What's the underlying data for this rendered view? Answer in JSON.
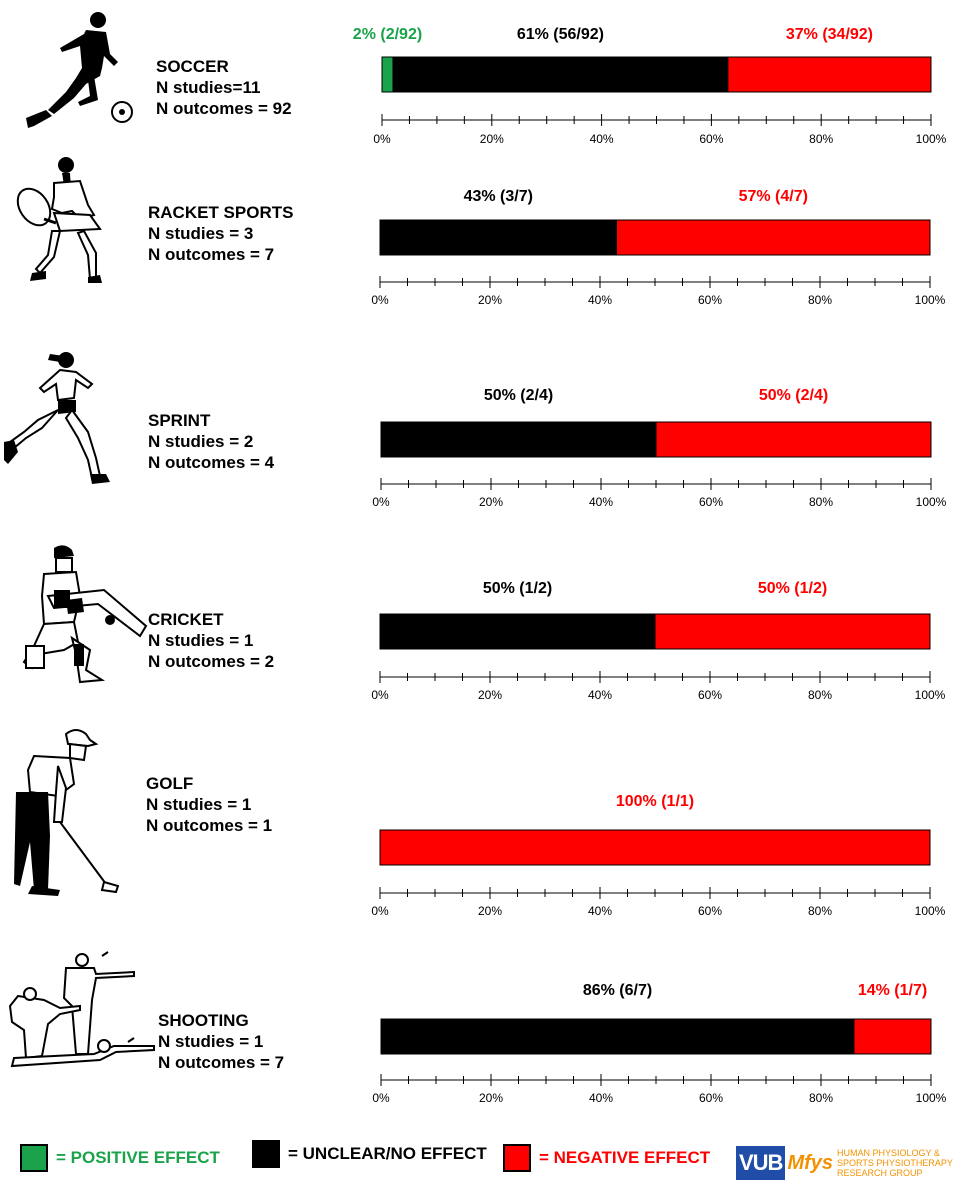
{
  "colors": {
    "positive": "#1aa34a",
    "unclear": "#000000",
    "negative": "#ff0000"
  },
  "sports": [
    {
      "name": "SOCCER",
      "studies": "N studies=11",
      "outcomes": "N outcomes = 92",
      "icon": "soccer-player-icon"
    },
    {
      "name": "RACKET SPORTS",
      "studies": "N studies = 3",
      "outcomes": "N outcomes = 7",
      "icon": "tennis-player-icon"
    },
    {
      "name": "SPRINT",
      "studies": "N studies = 2",
      "outcomes": "N outcomes = 4",
      "icon": "sprinter-icon"
    },
    {
      "name": "CRICKET",
      "studies": "N studies = 1",
      "outcomes": "N outcomes = 2",
      "icon": "cricket-batter-icon"
    },
    {
      "name": "GOLF",
      "studies": "N studies = 1",
      "outcomes": "N outcomes = 1",
      "icon": "golfer-icon"
    },
    {
      "name": "SHOOTING",
      "studies": "N studies = 1",
      "outcomes": "N outcomes = 7",
      "icon": "shooters-icon"
    }
  ],
  "chart_data": {
    "type": "bar",
    "orientation": "horizontal-stacked-100",
    "xlim": [
      0,
      100
    ],
    "ticks": [
      "0%",
      "20%",
      "40%",
      "60%",
      "80%",
      "100%"
    ],
    "categories": [
      "SOCCER",
      "RACKET SPORTS",
      "SPRINT",
      "CRICKET",
      "GOLF",
      "SHOOTING"
    ],
    "bars": [
      {
        "segments": [
          {
            "type": "positive",
            "value": 2,
            "label": "2% (2/92)"
          },
          {
            "type": "unclear",
            "value": 61,
            "label": "61% (56/92)"
          },
          {
            "type": "negative",
            "value": 37,
            "label": "37% (34/92)"
          }
        ]
      },
      {
        "segments": [
          {
            "type": "unclear",
            "value": 43,
            "label": "43% (3/7)"
          },
          {
            "type": "negative",
            "value": 57,
            "label": "57% (4/7)"
          }
        ]
      },
      {
        "segments": [
          {
            "type": "unclear",
            "value": 50,
            "label": "50% (2/4)"
          },
          {
            "type": "negative",
            "value": 50,
            "label": "50% (2/4)"
          }
        ]
      },
      {
        "segments": [
          {
            "type": "unclear",
            "value": 50,
            "label": "50% (1/2)"
          },
          {
            "type": "negative",
            "value": 50,
            "label": "50% (1/2)"
          }
        ]
      },
      {
        "segments": [
          {
            "type": "negative",
            "value": 100,
            "label": "100% (1/1)"
          }
        ]
      },
      {
        "segments": [
          {
            "type": "unclear",
            "value": 86,
            "label": "86% (6/7)"
          },
          {
            "type": "negative",
            "value": 14,
            "label": "14% (1/7)"
          }
        ]
      }
    ],
    "legend": [
      {
        "type": "positive",
        "label": "= POSITIVE EFFECT"
      },
      {
        "type": "unclear",
        "label": "= UNCLEAR/NO EFFECT"
      },
      {
        "type": "negative",
        "label": "= NEGATIVE EFFECT"
      }
    ]
  },
  "logo": {
    "vub": "VUB",
    "mfys": "Mfys",
    "line1": "HUMAN PHYSIOLOGY &",
    "line2": "SPORTS PHYSIOTHERAPY",
    "line3": "RESEARCH GROUP"
  }
}
